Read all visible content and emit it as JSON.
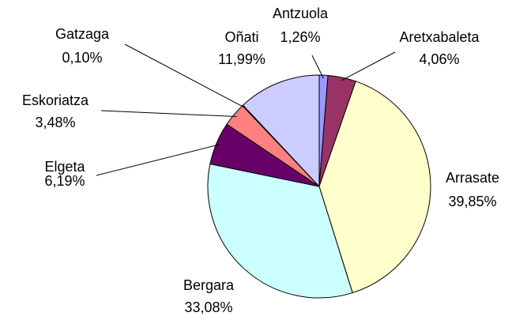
{
  "chart_data": {
    "type": "pie",
    "categories": [
      "Antzuola",
      "Aretxabaleta",
      "Arrasate",
      "Bergara",
      "Elgeta",
      "Eskoriatza",
      "Gatzaga",
      "Oñati"
    ],
    "values": [
      1.26,
      4.06,
      39.85,
      33.08,
      6.19,
      3.48,
      0.1,
      11.99
    ],
    "value_labels": [
      "1,26%",
      "4,06%",
      "39,85%",
      "33,08%",
      "6,19%",
      "3,48%",
      "0,10%",
      "11,99%"
    ],
    "colors": [
      "#9999ff",
      "#993366",
      "#ffffcc",
      "#ccffff",
      "#660066",
      "#ff8080",
      "#0066cc",
      "#ccccff"
    ]
  }
}
